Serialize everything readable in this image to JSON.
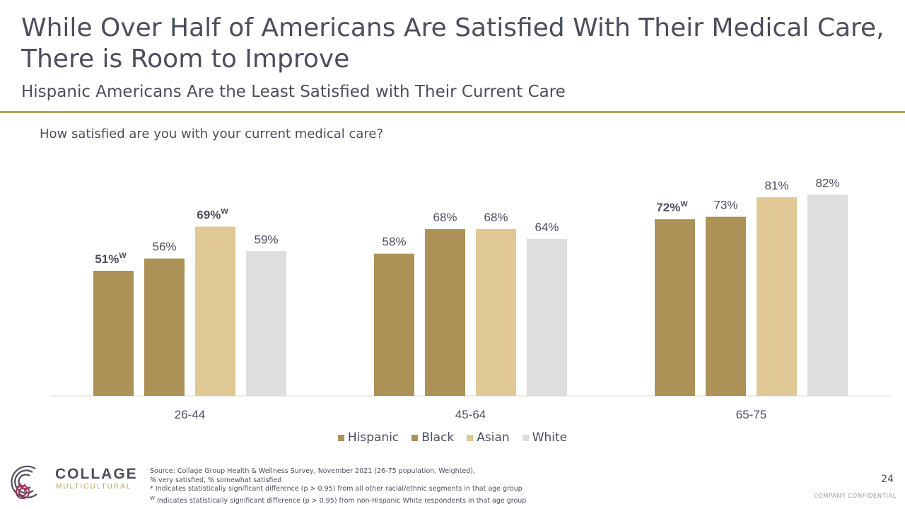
{
  "slide": {
    "title": "While Over Half of Americans Are Satisfied With Their Medical Care, There is Room to Improve",
    "subtitle": "Hispanic Americans Are the Least Satisfied with Their Current Care",
    "question": "How satisfied are you with your current medical care?",
    "page_number": "24",
    "confidential": "COMPANY CONFIDENTIAL"
  },
  "logo": {
    "name": "COLLAGE",
    "tagline": "MULTICULTURAL"
  },
  "source_notes": [
    "Source: Collage Group Health & Wellness Survey, November 2021 (26-75 population, Weighted),",
    " % very satisfied, % somewhat satisfied",
    "* Indicates statistically significant difference (p > 0.95) from all other racial/ethnic segments in that age group",
    "W Indicates statistically significant difference (p > 0.95) from non-Hispanic White respondents in that age group"
  ],
  "chart_data": {
    "type": "bar",
    "categories": [
      "26-44",
      "45-64",
      "65-75"
    ],
    "series": [
      {
        "name": "Hispanic",
        "values": [
          51,
          58,
          72
        ],
        "color": "#ad9257",
        "labels": [
          "51%",
          "58%",
          "72%"
        ],
        "sig": [
          "W",
          "",
          "W"
        ]
      },
      {
        "name": "Black",
        "values": [
          56,
          68,
          73
        ],
        "color": "#ad9257",
        "labels": [
          "56%",
          "68%",
          "73%"
        ],
        "sig": [
          "",
          "",
          ""
        ]
      },
      {
        "name": "Asian",
        "values": [
          69,
          68,
          81
        ],
        "color": "#e0c995",
        "labels": [
          "69%",
          "68%",
          "81%"
        ],
        "sig": [
          "W",
          "",
          ""
        ]
      },
      {
        "name": "White",
        "values": [
          59,
          64,
          82
        ],
        "color": "#dedede",
        "labels": [
          "59%",
          "64%",
          "82%"
        ],
        "sig": [
          "",
          "",
          ""
        ]
      }
    ],
    "ylim": [
      0,
      100
    ],
    "grid": false,
    "legend_position": "bottom"
  }
}
